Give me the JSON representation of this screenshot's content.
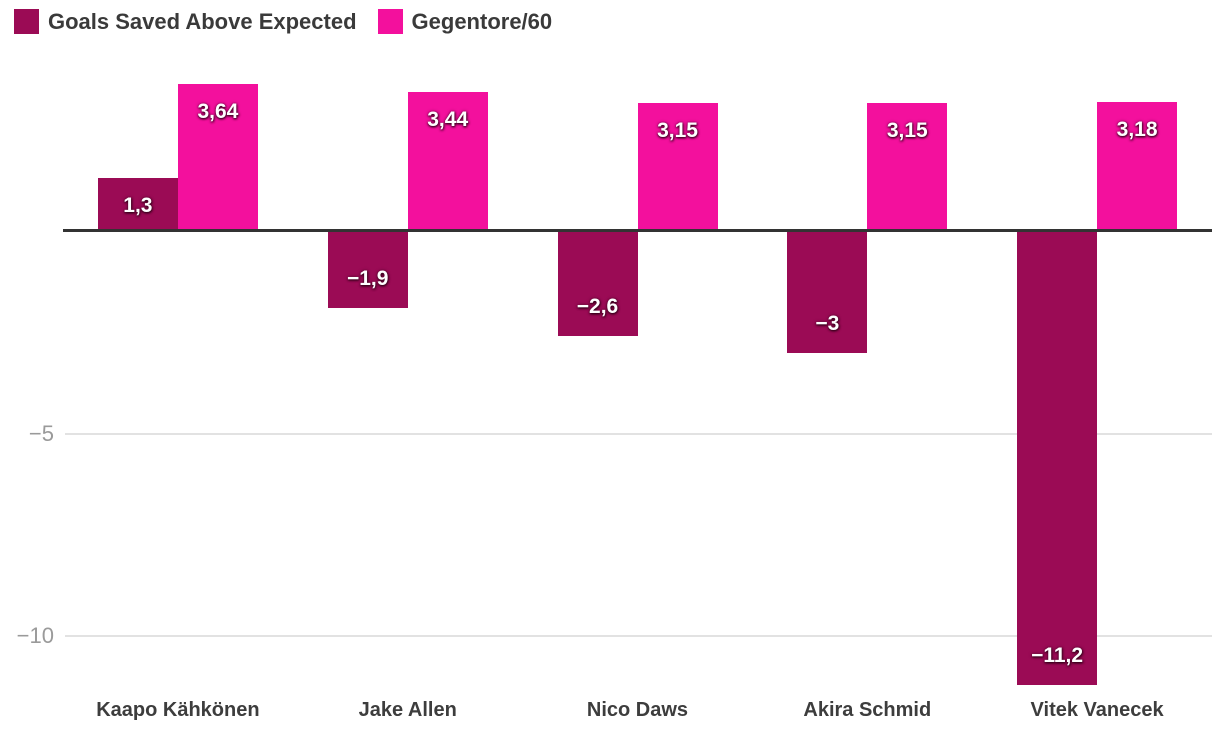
{
  "legend": {
    "items": [
      {
        "label": "Goals Saved Above Expected",
        "color": "#9B0B55"
      },
      {
        "label": "Gegentore/60",
        "color": "#F3109D"
      }
    ]
  },
  "chart_data": {
    "type": "bar",
    "categories": [
      "Kaapo Kähkönen",
      "Jake Allen",
      "Nico Daws",
      "Akira Schmid",
      "Vitek Vanecek"
    ],
    "series": [
      {
        "name": "Goals Saved Above Expected",
        "color": "#9B0B55",
        "values": [
          1.3,
          -1.9,
          -2.6,
          -3,
          -11.2
        ],
        "value_labels": [
          "1,3",
          "−1,9",
          "−2,6",
          "−3",
          "−11,2"
        ]
      },
      {
        "name": "Gegentore/60",
        "color": "#F3109D",
        "values": [
          3.64,
          3.44,
          3.15,
          3.15,
          3.18
        ],
        "value_labels": [
          "3,64",
          "3,44",
          "3,15",
          "3,15",
          "3,18"
        ]
      }
    ],
    "y_axis": {
      "ticks": [
        {
          "value": -5,
          "label": "−5"
        },
        {
          "value": -10,
          "label": "−10"
        }
      ],
      "range": [
        -11.7,
        3.8
      ],
      "zero_line": true
    },
    "grid": "horizontal",
    "legend_position": "top-left"
  },
  "colors": {
    "background": "#FFFFFF",
    "axis_line": "#333333",
    "gridline": "#E2E2E2",
    "tick_label": "#9A9A9A",
    "category_label": "#3D3D3D",
    "legend_text": "#3A3A3A",
    "value_label": "#FFFFFF"
  }
}
